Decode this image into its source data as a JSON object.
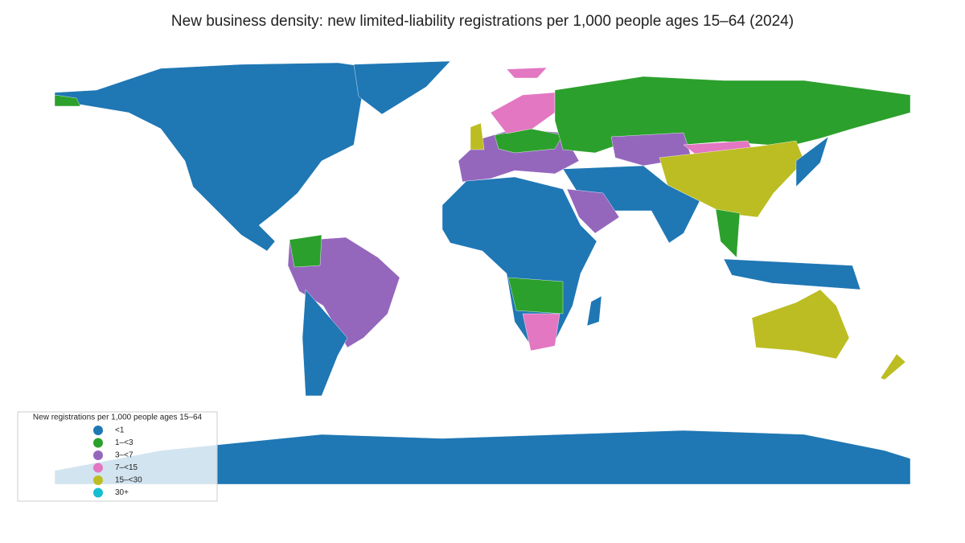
{
  "chart_data": {
    "type": "choropleth",
    "title": "New business density: new limited-liability registrations per 1,000 people ages 15–64 (2024)",
    "legend": {
      "title": "New registrations per 1,000 people ages 15–64",
      "position": "lower left",
      "items": [
        {
          "label": "<1",
          "color": "#1f77b4"
        },
        {
          "label": "1–<3",
          "color": "#2ca02c"
        },
        {
          "label": "3–<7",
          "color": "#9467bd"
        },
        {
          "label": "7–<15",
          "color": "#e377c2"
        },
        {
          "label": "15–<30",
          "color": "#bcbd22"
        },
        {
          "label": "30+",
          "color": "#17becf"
        }
      ]
    }
  }
}
